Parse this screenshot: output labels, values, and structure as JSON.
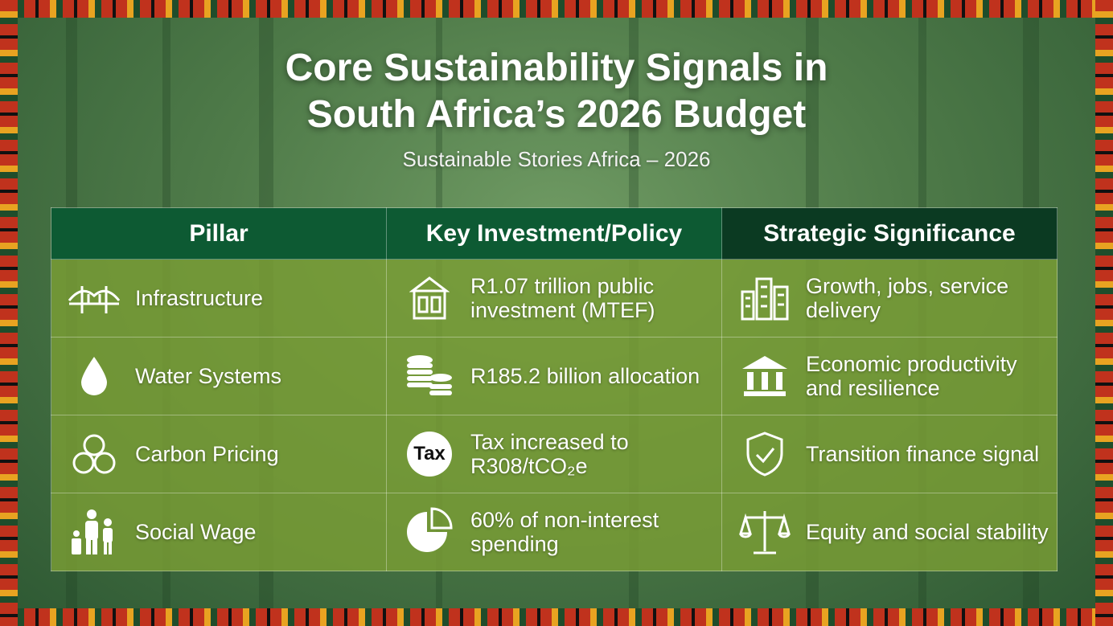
{
  "title_line1": "Core Sustainability Signals in",
  "title_line2": "South Africa’s 2026 Budget",
  "subtitle": "Sustainable Stories Africa – 2026",
  "headers": [
    "Pillar",
    "Key Investment/Policy",
    "Strategic Significance"
  ],
  "rows": [
    {
      "pillar": "Infrastructure",
      "pillar_icon": "bridge-icon",
      "investment": "R1.07 trillion public investment (MTEF)",
      "investment_icon": "building-icon",
      "significance": "Growth, jobs, service delivery",
      "significance_icon": "city-icon"
    },
    {
      "pillar": "Water Systems",
      "pillar_icon": "water-drop-icon",
      "investment": "R185.2 billion allocation",
      "investment_icon": "coins-icon",
      "significance": "Economic productivity and resilience",
      "significance_icon": "bank-icon"
    },
    {
      "pillar": "Carbon Pricing",
      "pillar_icon": "carbon-circles-icon",
      "investment": "Tax increased to R308/tCO₂e",
      "investment_icon": "tax-icon",
      "investment_icon_text": "Tax",
      "significance": "Transition finance signal",
      "significance_icon": "shield-check-icon"
    },
    {
      "pillar": "Social Wage",
      "pillar_icon": "family-icon",
      "investment": "60% of non-interest spending",
      "investment_icon": "pie-chart-icon",
      "significance": "Equity and social stability",
      "significance_icon": "scales-icon"
    }
  ],
  "colors": {
    "header": "#0d5a33",
    "cell": "#7a9e34",
    "text": "#ffffff"
  }
}
